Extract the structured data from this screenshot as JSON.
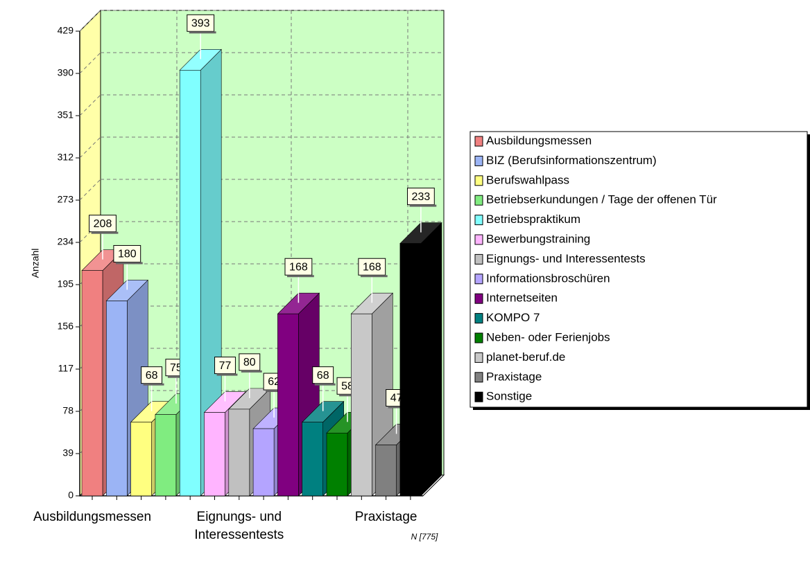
{
  "chart_data": {
    "type": "bar3d",
    "y_label": "Anzahl",
    "footnote": "N [775]",
    "categories": [
      "Ausbildungsmessen",
      null,
      null,
      null,
      null,
      null,
      "Eignungs- und Interessentests",
      null,
      null,
      null,
      null,
      null,
      "Praxistage",
      null
    ],
    "ylim": [
      0,
      429
    ],
    "yticks": [
      0,
      39,
      78,
      117,
      156,
      195,
      234,
      273,
      312,
      351,
      390,
      429
    ],
    "grid": true,
    "legend": "right",
    "series": [
      {
        "name": "Ausbildungsmessen",
        "color": "#f08080",
        "values": [
          208,
          null,
          null,
          null,
          null,
          null,
          null,
          null,
          null,
          null,
          null,
          null,
          null,
          null
        ]
      },
      {
        "name": "BIZ (Berufsinformationszentrum)",
        "color": "#9bb4f5",
        "values": [
          null,
          180,
          null,
          null,
          null,
          null,
          null,
          null,
          null,
          null,
          null,
          null,
          null,
          null
        ]
      },
      {
        "name": "Berufswahlpass",
        "color": "#ffff80",
        "values": [
          null,
          null,
          68,
          null,
          null,
          null,
          null,
          null,
          null,
          null,
          null,
          null,
          null,
          null
        ]
      },
      {
        "name": "Betriebserkundungen / Tage der offenen Tür",
        "color": "#80ec80",
        "values": [
          null,
          null,
          null,
          75,
          null,
          null,
          null,
          null,
          null,
          null,
          null,
          null,
          null,
          null
        ]
      },
      {
        "name": "Betriebspraktikum",
        "color": "#80ffff",
        "values": [
          null,
          null,
          null,
          null,
          393,
          null,
          null,
          null,
          null,
          null,
          null,
          null,
          null,
          null
        ]
      },
      {
        "name": "Bewerbungstraining",
        "color": "#ffb4ff",
        "values": [
          null,
          null,
          null,
          null,
          null,
          77,
          null,
          null,
          null,
          null,
          null,
          null,
          null,
          null
        ]
      },
      {
        "name": "Eignungs- und Interessentests",
        "color": "#c0c0c0",
        "values": [
          null,
          null,
          null,
          null,
          null,
          null,
          80,
          null,
          null,
          null,
          null,
          null,
          null,
          null
        ]
      },
      {
        "name": "Informationsbroschüren",
        "color": "#b4a4ff",
        "values": [
          null,
          null,
          null,
          null,
          null,
          null,
          null,
          62,
          null,
          null,
          null,
          null,
          null,
          null
        ]
      },
      {
        "name": "Internetseiten",
        "color": "#800080",
        "values": [
          null,
          null,
          null,
          null,
          null,
          null,
          null,
          null,
          168,
          null,
          null,
          null,
          null,
          null
        ]
      },
      {
        "name": "KOMPO 7",
        "color": "#008080",
        "values": [
          null,
          null,
          null,
          null,
          null,
          null,
          null,
          null,
          null,
          68,
          null,
          null,
          null,
          null
        ]
      },
      {
        "name": "Neben- oder Ferienjobs",
        "color": "#008000",
        "values": [
          null,
          null,
          null,
          null,
          null,
          null,
          null,
          null,
          null,
          null,
          58,
          null,
          null,
          null
        ]
      },
      {
        "name": "planet-beruf.de",
        "color": "#c8c8c8",
        "values": [
          null,
          null,
          null,
          null,
          null,
          null,
          null,
          null,
          null,
          null,
          null,
          168,
          null,
          null
        ]
      },
      {
        "name": "Praxistage",
        "color": "#808080",
        "values": [
          null,
          null,
          null,
          null,
          null,
          null,
          null,
          null,
          null,
          null,
          null,
          null,
          47,
          null
        ]
      },
      {
        "name": "Sonstige",
        "color": "#000000",
        "values": [
          null,
          null,
          null,
          null,
          null,
          null,
          null,
          null,
          null,
          null,
          null,
          null,
          null,
          233
        ]
      }
    ]
  }
}
